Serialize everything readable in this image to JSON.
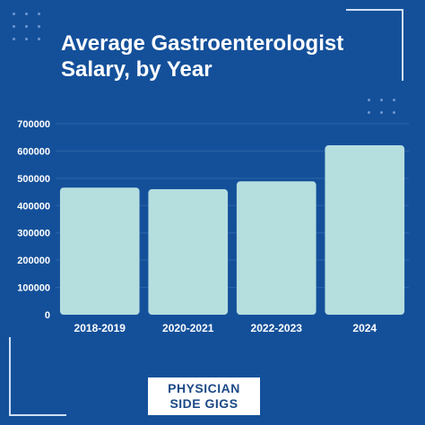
{
  "page": {
    "title_line1": "Average Gastroenterologist",
    "title_line2": "Salary, by Year",
    "brand_line1": "PHYSICIAN",
    "brand_line2": "SIDE GIGS"
  },
  "colors": {
    "background": "#14509a",
    "bar": "#b5dedf",
    "text": "#ffffff",
    "grid": "#2e63a6"
  },
  "chart_data": {
    "type": "bar",
    "title": "Average Gastroenterologist Salary, by Year",
    "categories": [
      "2018-2019",
      "2020-2021",
      "2022-2023",
      "2024"
    ],
    "values": [
      466000,
      460000,
      489000,
      621000
    ],
    "yticks": [
      0,
      100000,
      200000,
      300000,
      400000,
      500000,
      600000,
      700000
    ],
    "ylim": [
      0,
      700000
    ],
    "grid": true,
    "legend": "none"
  }
}
